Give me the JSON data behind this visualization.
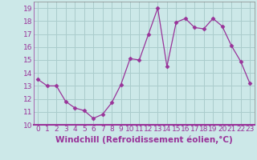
{
  "x": [
    0,
    1,
    2,
    3,
    4,
    5,
    6,
    7,
    8,
    9,
    10,
    11,
    12,
    13,
    14,
    15,
    16,
    17,
    18,
    19,
    20,
    21,
    22,
    23
  ],
  "y": [
    13.5,
    13.0,
    13.0,
    11.8,
    11.3,
    11.1,
    10.5,
    10.8,
    11.7,
    13.1,
    15.1,
    15.0,
    17.0,
    19.0,
    14.5,
    17.9,
    18.2,
    17.5,
    17.4,
    18.2,
    17.6,
    16.1,
    14.9,
    13.2
  ],
  "line_color": "#993399",
  "marker": "D",
  "marker_size": 2.5,
  "bg_color": "#cce8e8",
  "grid_color": "#aacccc",
  "xlabel": "Windchill (Refroidissement éolien,°C)",
  "ylim": [
    10,
    19.5
  ],
  "xlim": [
    -0.5,
    23.5
  ],
  "yticks": [
    10,
    11,
    12,
    13,
    14,
    15,
    16,
    17,
    18,
    19
  ],
  "xticks": [
    0,
    1,
    2,
    3,
    4,
    5,
    6,
    7,
    8,
    9,
    10,
    11,
    12,
    13,
    14,
    15,
    16,
    17,
    18,
    19,
    20,
    21,
    22,
    23
  ],
  "tick_label_size": 6.5,
  "xlabel_size": 7.5,
  "tick_color": "#993399",
  "label_color": "#993399"
}
